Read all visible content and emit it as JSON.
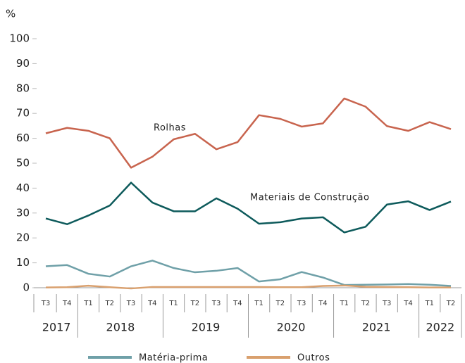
{
  "chart_data": {
    "type": "line",
    "y_label": "%",
    "groups": [
      {
        "name": "2017",
        "categories": [
          "T3",
          "T4"
        ]
      },
      {
        "name": "2018",
        "categories": [
          "T1",
          "T2",
          "T3",
          "T4"
        ]
      },
      {
        "name": "2019",
        "categories": [
          "T1",
          "T2",
          "T3",
          "T4"
        ]
      },
      {
        "name": "2020",
        "categories": [
          "T1",
          "T2",
          "T3",
          "T4"
        ]
      },
      {
        "name": "2021",
        "categories": [
          "T1",
          "T2",
          "T3",
          "T4"
        ]
      },
      {
        "name": "2022",
        "categories": [
          "T1",
          "T2"
        ]
      }
    ],
    "series": [
      {
        "name": "Rolhas",
        "color": "#c8644e",
        "label_position": "inline",
        "values": [
          62,
          64.2,
          63,
          60,
          48.2,
          52.6,
          59.6,
          61.8,
          55.6,
          58.5,
          69.3,
          67.8,
          64.7,
          66,
          76,
          72.7,
          64.9,
          63,
          66.5,
          63.7
        ]
      },
      {
        "name": "Materiais de Construção",
        "color": "#0d5a5b",
        "label_position": "inline",
        "values": [
          27.8,
          25.5,
          29,
          33,
          42.2,
          34.2,
          30.7,
          30.7,
          35.9,
          31.7,
          25.7,
          26.3,
          27.8,
          28.3,
          22.2,
          24.5,
          33.4,
          34.7,
          31.2,
          34.6
        ]
      },
      {
        "name": "Matéria-prima",
        "color": "#6fa0a8",
        "label_position": "legend",
        "values": [
          8.6,
          9.1,
          5.6,
          4.5,
          8.6,
          10.9,
          7.9,
          6.2,
          6.8,
          7.9,
          2.5,
          3.4,
          6.3,
          4.1,
          1.1,
          1.2,
          1.3,
          1.5,
          1.2,
          0.7
        ]
      },
      {
        "name": "Outros",
        "color": "#d9a06e",
        "label_position": "legend",
        "values": [
          0.1,
          0.2,
          0.8,
          0.2,
          -0.3,
          0.3,
          0.3,
          0.3,
          0.3,
          0.3,
          0.3,
          0.2,
          0.2,
          0.7,
          0.9,
          0.4,
          0.3,
          0.2,
          0.1,
          0.1
        ]
      }
    ],
    "ylim": [
      0,
      100
    ],
    "yticks": [
      0,
      10,
      20,
      30,
      40,
      50,
      60,
      70,
      80,
      90,
      100
    ],
    "grid": false,
    "legend": "bottom"
  }
}
